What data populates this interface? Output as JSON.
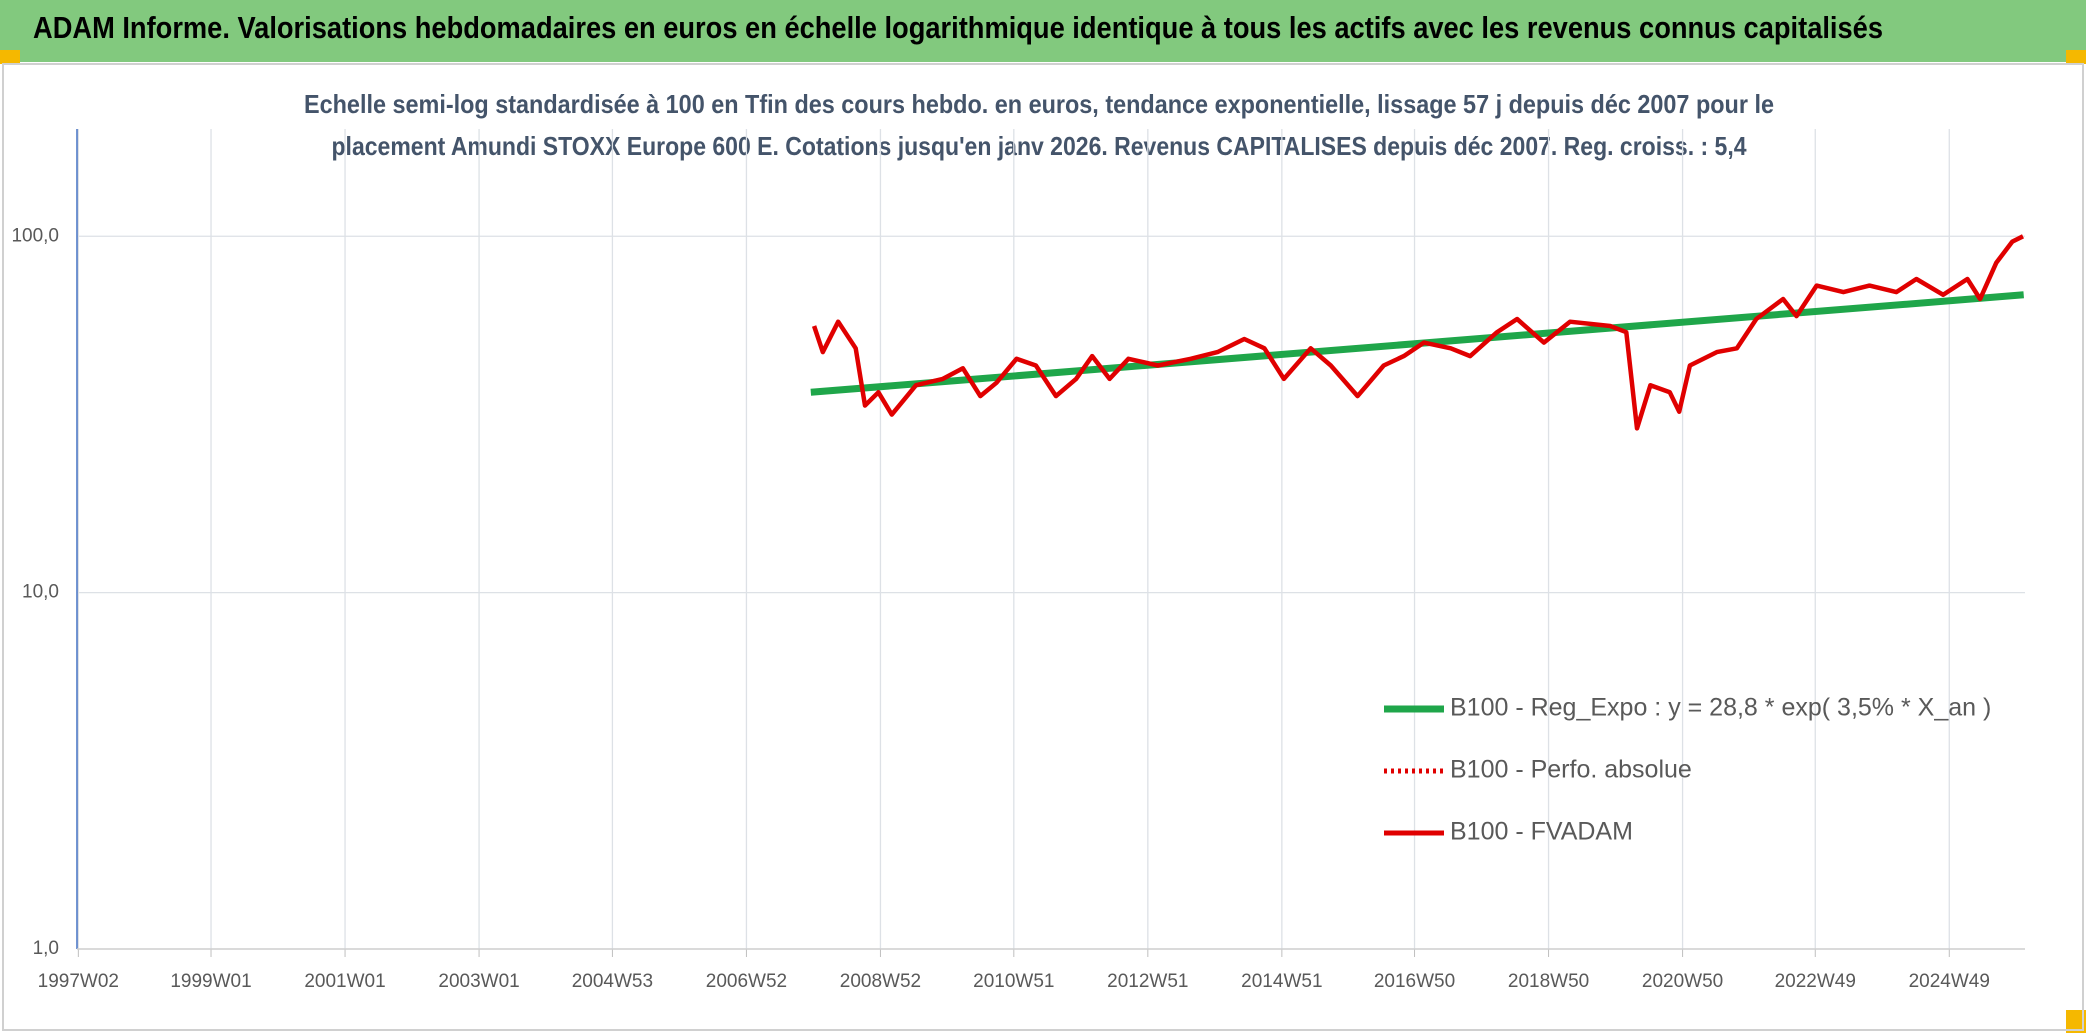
{
  "chart_data": {
    "type": "line",
    "title": "ADAM Informe. Valorisations hebdomadaires en euros en échelle logarithmique identique à tous les actifs avec les revenus connus capitalisés",
    "subtitle": [
      "Echelle semi-log standardisée à 100 en Tfin des cours hebdo. en euros, tendance exponentielle, lissage 57 j depuis déc 2007 pour le",
      "placement Amundi STOXX Europe 600 E. Cotations jusqu'en janv 2026. Revenus CAPITALISES depuis déc 2007. Reg. croiss. : 5,4"
    ],
    "log_scale": true,
    "grid": true,
    "legend": "right",
    "xlim": [
      1997.0,
      2026.07
    ],
    "xticks": [
      {
        "value": 1997.02,
        "label": "1997W02"
      },
      {
        "value": 1999.0,
        "label": "1999W01"
      },
      {
        "value": 2001.0,
        "label": "2001W01"
      },
      {
        "value": 2003.0,
        "label": "2003W01"
      },
      {
        "value": 2004.99,
        "label": "2004W53"
      },
      {
        "value": 2006.99,
        "label": "2006W52"
      },
      {
        "value": 2008.99,
        "label": "2008W52"
      },
      {
        "value": 2010.98,
        "label": "2010W51"
      },
      {
        "value": 2012.98,
        "label": "2012W51"
      },
      {
        "value": 2014.98,
        "label": "2014W51"
      },
      {
        "value": 2016.96,
        "label": "2016W50"
      },
      {
        "value": 2018.96,
        "label": "2018W50"
      },
      {
        "value": 2020.96,
        "label": "2020W50"
      },
      {
        "value": 2022.94,
        "label": "2022W49"
      },
      {
        "value": 2024.94,
        "label": "2024W49"
      }
    ],
    "ylim": [
      1,
      200
    ],
    "yticks": [
      {
        "value": 1,
        "label": "1,0"
      },
      {
        "value": 10,
        "label": "10,0"
      },
      {
        "value": 100,
        "label": "100,0"
      }
    ],
    "series": [
      {
        "name": "B100 - Reg_Expo : y = 28,8 * exp( 3,5% *  X_an )",
        "color": "#1fa64a",
        "style": "solid",
        "x": [
          2007.95,
          2026.05
        ],
        "values": [
          36.5,
          68.5
        ]
      },
      {
        "name": "B100 - Perfo. absolue",
        "color": "#e00000",
        "style": "dotted",
        "x": [],
        "values": []
      },
      {
        "name": "B100 - FVADAM",
        "color": "#e00000",
        "style": "solid",
        "x": [
          2008.0,
          2008.13,
          2008.36,
          2008.62,
          2008.76,
          2008.96,
          2009.16,
          2009.52,
          2009.92,
          2010.22,
          2010.48,
          2010.72,
          2011.02,
          2011.31,
          2011.61,
          2011.91,
          2012.15,
          2012.41,
          2012.69,
          2013.13,
          2013.62,
          2014.02,
          2014.42,
          2014.72,
          2015.01,
          2015.41,
          2015.71,
          2016.11,
          2016.5,
          2016.8,
          2017.1,
          2017.5,
          2017.79,
          2018.19,
          2018.49,
          2018.89,
          2019.28,
          2019.88,
          2020.12,
          2020.28,
          2020.48,
          2020.77,
          2020.91,
          2021.07,
          2021.47,
          2021.77,
          2022.06,
          2022.46,
          2022.66,
          2022.96,
          2023.36,
          2023.75,
          2024.15,
          2024.45,
          2024.85,
          2025.21,
          2025.4,
          2025.64,
          2025.88,
          2026.04
        ],
        "values": [
          56,
          47.3,
          57.6,
          48.5,
          33.5,
          36.5,
          31.6,
          38.2,
          39.8,
          42.6,
          35.6,
          38.8,
          45.3,
          43.4,
          35.6,
          39.8,
          46.1,
          39.8,
          45.3,
          43.4,
          45.3,
          47.3,
          51.5,
          48.5,
          39.8,
          48.5,
          43.4,
          35.6,
          43.4,
          46.1,
          50.3,
          48.5,
          46.1,
          53.8,
          58.6,
          50.3,
          57.6,
          56.0,
          53.8,
          28.9,
          38.2,
          36.5,
          32.2,
          43.4,
          47.3,
          48.5,
          58.6,
          66.7,
          59.7,
          72.7,
          69.7,
          72.7,
          69.7,
          75.9,
          68.5,
          75.9,
          66.7,
          84.2,
          96.6,
          100
        ]
      }
    ]
  }
}
